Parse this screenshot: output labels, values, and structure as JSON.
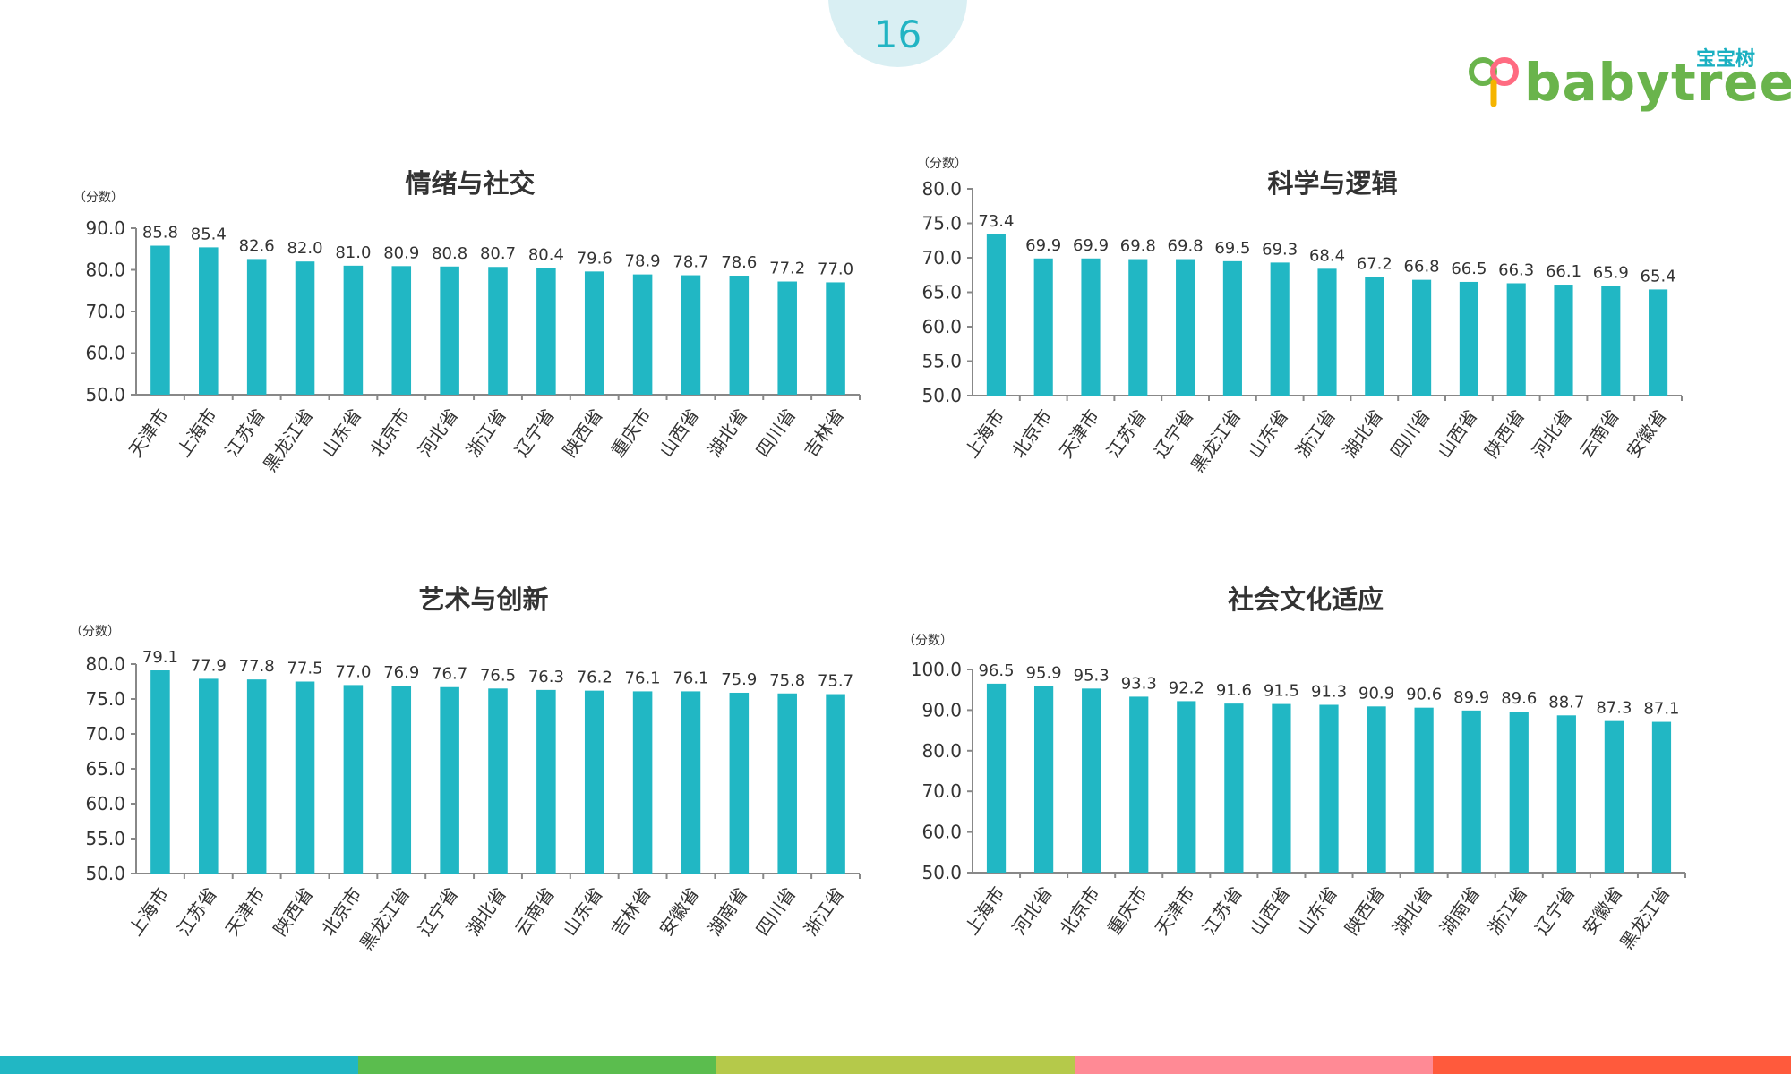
{
  "page_number": "16",
  "logo": {
    "cn": "宝宝树",
    "en": "babytree"
  },
  "colors": {
    "bar": "#21b7c4",
    "axis": "#888888",
    "bottom_stripes": [
      "#21b7c4",
      "#5bbd4e",
      "#b5c94a",
      "#ff8a95",
      "#ff5a3c"
    ]
  },
  "chart_data": [
    {
      "type": "bar",
      "title": "情绪与社交",
      "unit": "（分数）",
      "ylim": [
        50,
        90
      ],
      "yticks": [
        "50.0",
        "60.0",
        "70.0",
        "80.0",
        "90.0"
      ],
      "categories": [
        "天津市",
        "上海市",
        "江苏省",
        "黑龙江省",
        "山东省",
        "北京市",
        "河北省",
        "浙江省",
        "辽宁省",
        "陕西省",
        "重庆市",
        "山西省",
        "湖北省",
        "四川省",
        "吉林省"
      ],
      "values": [
        85.8,
        85.4,
        82.6,
        82.0,
        81.0,
        80.9,
        80.8,
        80.7,
        80.4,
        79.6,
        78.9,
        78.7,
        78.6,
        77.2,
        77.0
      ],
      "labels": [
        "85.8",
        "85.4",
        "82.6",
        "82.0",
        "81.0",
        "80.9",
        "80.8",
        "80.7",
        "80.4",
        "79.6",
        "78.9",
        "78.7",
        "78.6",
        "77.2",
        "77.0"
      ]
    },
    {
      "type": "bar",
      "title": "科学与逻辑",
      "unit": "（分数）",
      "ylim": [
        50,
        80
      ],
      "yticks": [
        "50.0",
        "55.0",
        "60.0",
        "65.0",
        "70.0",
        "75.0",
        "80.0"
      ],
      "categories": [
        "上海市",
        "北京市",
        "天津市",
        "江苏省",
        "辽宁省",
        "黑龙江省",
        "山东省",
        "浙江省",
        "湖北省",
        "四川省",
        "山西省",
        "陕西省",
        "河北省",
        "云南省",
        "安徽省"
      ],
      "values": [
        73.4,
        69.9,
        69.9,
        69.8,
        69.8,
        69.5,
        69.3,
        68.4,
        67.2,
        66.8,
        66.5,
        66.3,
        66.1,
        65.9,
        65.4
      ],
      "labels": [
        "73.4",
        "69.9",
        "69.9",
        "69.8",
        "69.8",
        "69.5",
        "69.3",
        "68.4",
        "67.2",
        "66.8",
        "66.5",
        "66.3",
        "66.1",
        "65.9",
        "65.4"
      ]
    },
    {
      "type": "bar",
      "title": "艺术与创新",
      "unit": "（分数）",
      "ylim": [
        50,
        80
      ],
      "yticks": [
        "50.0",
        "55.0",
        "60.0",
        "65.0",
        "70.0",
        "75.0",
        "80.0"
      ],
      "categories": [
        "上海市",
        "江苏省",
        "天津市",
        "陕西省",
        "北京市",
        "黑龙江省",
        "辽宁省",
        "湖北省",
        "云南省",
        "山东省",
        "吉林省",
        "安徽省",
        "湖南省",
        "四川省",
        "浙江省"
      ],
      "values": [
        79.1,
        77.9,
        77.8,
        77.5,
        77.0,
        76.9,
        76.7,
        76.5,
        76.3,
        76.2,
        76.1,
        76.1,
        75.9,
        75.8,
        75.7
      ],
      "labels": [
        "79.1",
        "77.9",
        "77.8",
        "77.5",
        "77.0",
        "76.9",
        "76.7",
        "76.5",
        "76.3",
        "76.2",
        "76.1",
        "76.1",
        "75.9",
        "75.8",
        "75.7"
      ]
    },
    {
      "type": "bar",
      "title": "社会文化适应",
      "unit": "（分数）",
      "ylim": [
        50,
        100
      ],
      "yticks": [
        "50.0",
        "60.0",
        "70.0",
        "80.0",
        "90.0",
        "100.0"
      ],
      "categories": [
        "上海市",
        "河北省",
        "北京市",
        "重庆市",
        "天津市",
        "江苏省",
        "山西省",
        "山东省",
        "陕西省",
        "湖北省",
        "湖南省",
        "浙江省",
        "辽宁省",
        "安徽省",
        "黑龙江省"
      ],
      "values": [
        96.5,
        95.9,
        95.3,
        93.3,
        92.2,
        91.6,
        91.5,
        91.3,
        90.9,
        90.6,
        89.9,
        89.6,
        88.7,
        87.3,
        87.1
      ],
      "labels": [
        "96.5",
        "95.9",
        "95.3",
        "93.3",
        "92.2",
        "91.6",
        "91.5",
        "91.3",
        "90.9",
        "90.6",
        "89.9",
        "89.6",
        "88.7",
        "87.3",
        "87.1"
      ]
    }
  ]
}
